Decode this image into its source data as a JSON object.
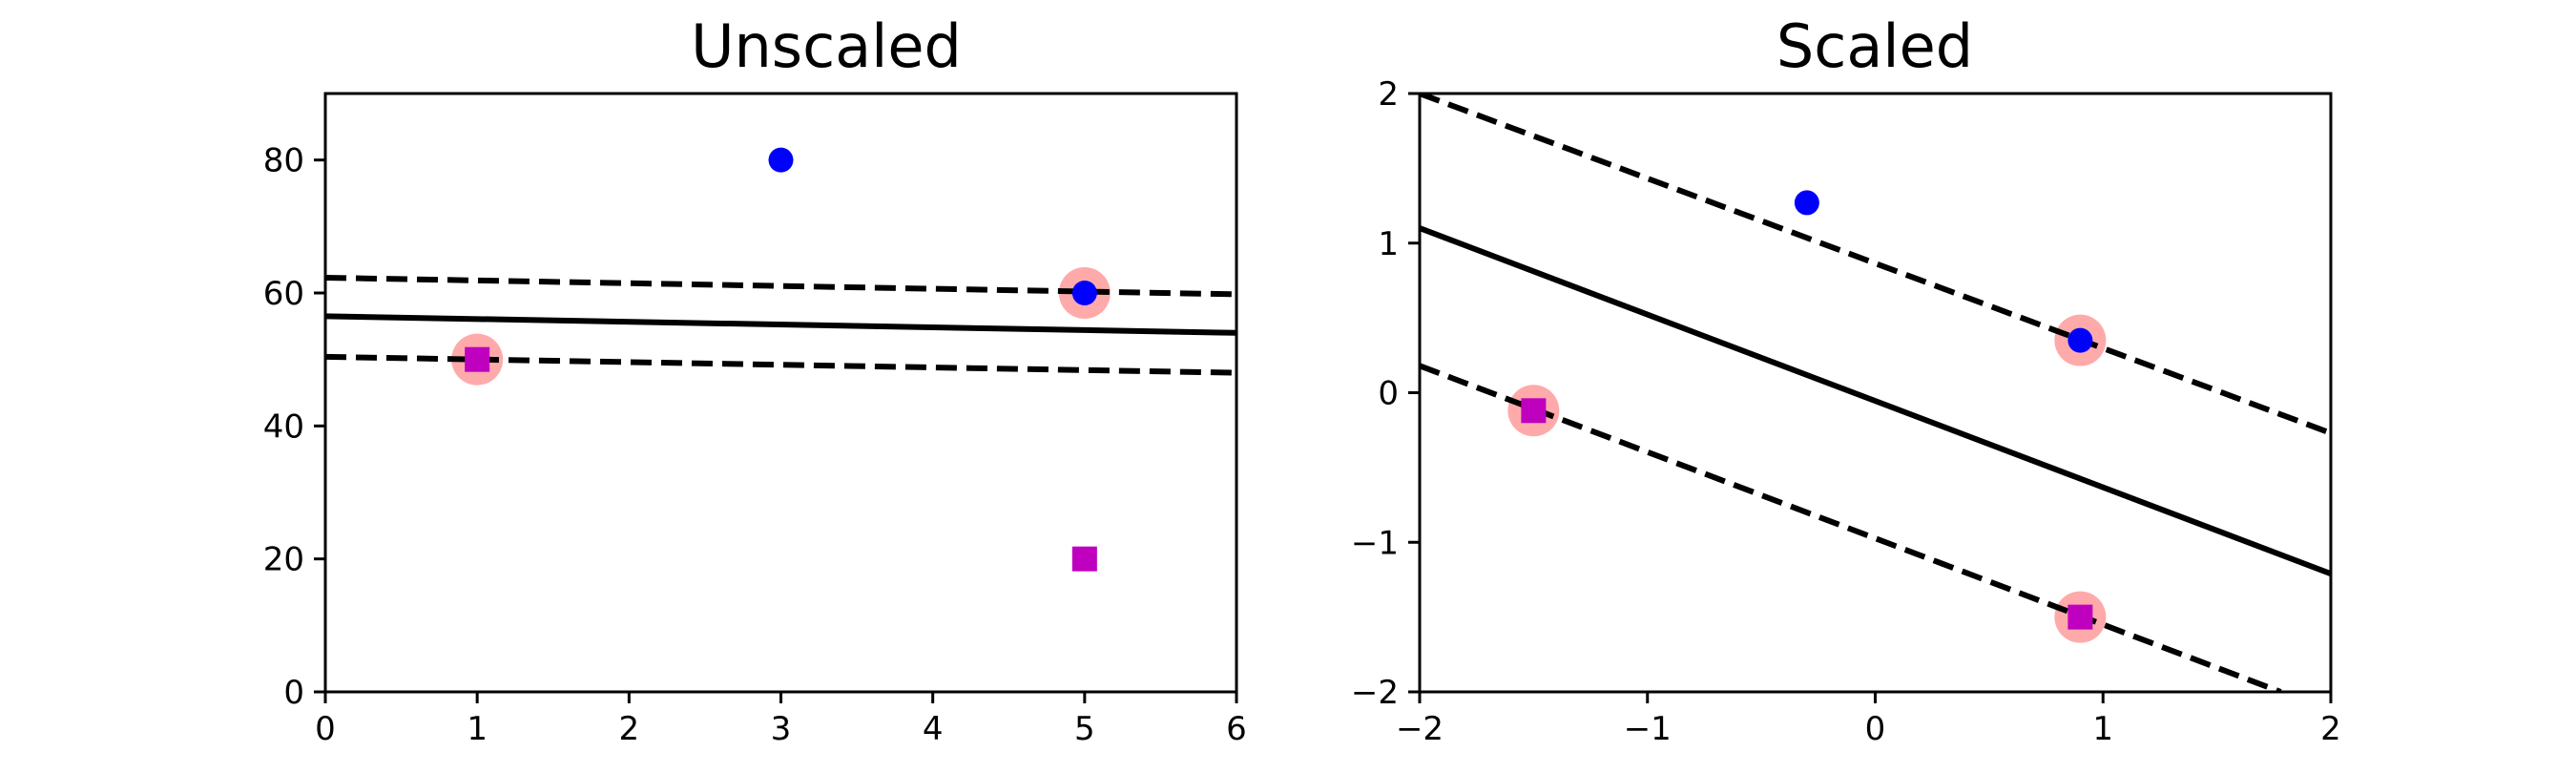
{
  "colors": {
    "class_circle": "#0000ff",
    "class_square": "#bf00bf",
    "support_highlight": "#ffaaaa",
    "boundary": "#000000"
  },
  "chart_data": [
    {
      "type": "scatter",
      "title": "Unscaled",
      "xlabel": "",
      "ylabel": "",
      "xlim": [
        0,
        6
      ],
      "ylim": [
        0,
        90
      ],
      "xticks": [
        0,
        1,
        2,
        3,
        4,
        5,
        6
      ],
      "yticks": [
        0,
        20,
        40,
        60,
        80
      ],
      "grid": false,
      "series": [
        {
          "marker": "circle",
          "color": "#0000ff",
          "points": [
            [
              3,
              80
            ],
            [
              5,
              60
            ]
          ]
        },
        {
          "marker": "square",
          "color": "#bf00bf",
          "points": [
            [
              1,
              50
            ],
            [
              5,
              20
            ]
          ]
        }
      ],
      "support_vectors": [
        [
          1,
          50
        ],
        [
          5,
          60
        ]
      ],
      "decision_boundary": {
        "points": [
          [
            0,
            56.5
          ],
          [
            6,
            54.0
          ]
        ],
        "style": "solid"
      },
      "margins": [
        {
          "points": [
            [
              0,
              62.3
            ],
            [
              6,
              59.8
            ]
          ],
          "style": "dashed"
        },
        {
          "points": [
            [
              0,
              50.4
            ],
            [
              6,
              48.0
            ]
          ],
          "style": "dashed"
        }
      ]
    },
    {
      "type": "scatter",
      "title": "Scaled",
      "xlabel": "",
      "ylabel": "",
      "xlim": [
        -2,
        2
      ],
      "ylim": [
        -2,
        2
      ],
      "xticks": [
        -2,
        -1,
        0,
        1,
        2
      ],
      "yticks": [
        -2,
        -1,
        0,
        1,
        2
      ],
      "grid": false,
      "series": [
        {
          "marker": "circle",
          "color": "#0000ff",
          "points": [
            [
              -0.3,
              1.27
            ],
            [
              0.9,
              0.35
            ]
          ]
        },
        {
          "marker": "square",
          "color": "#bf00bf",
          "points": [
            [
              -1.5,
              -0.12
            ],
            [
              0.9,
              -1.5
            ]
          ]
        }
      ],
      "support_vectors": [
        [
          -1.5,
          -0.12
        ],
        [
          0.9,
          0.35
        ],
        [
          0.9,
          -1.5
        ]
      ],
      "decision_boundary": {
        "points": [
          [
            -2,
            1.1
          ],
          [
            2,
            -1.21
          ]
        ],
        "style": "solid"
      },
      "margins": [
        {
          "points": [
            [
              -2,
              2.0
            ],
            [
              2,
              -0.27
            ]
          ],
          "style": "dashed"
        },
        {
          "points": [
            [
              -2,
              0.18
            ],
            [
              1.78,
              -2.0
            ]
          ],
          "style": "dashed"
        }
      ]
    }
  ]
}
